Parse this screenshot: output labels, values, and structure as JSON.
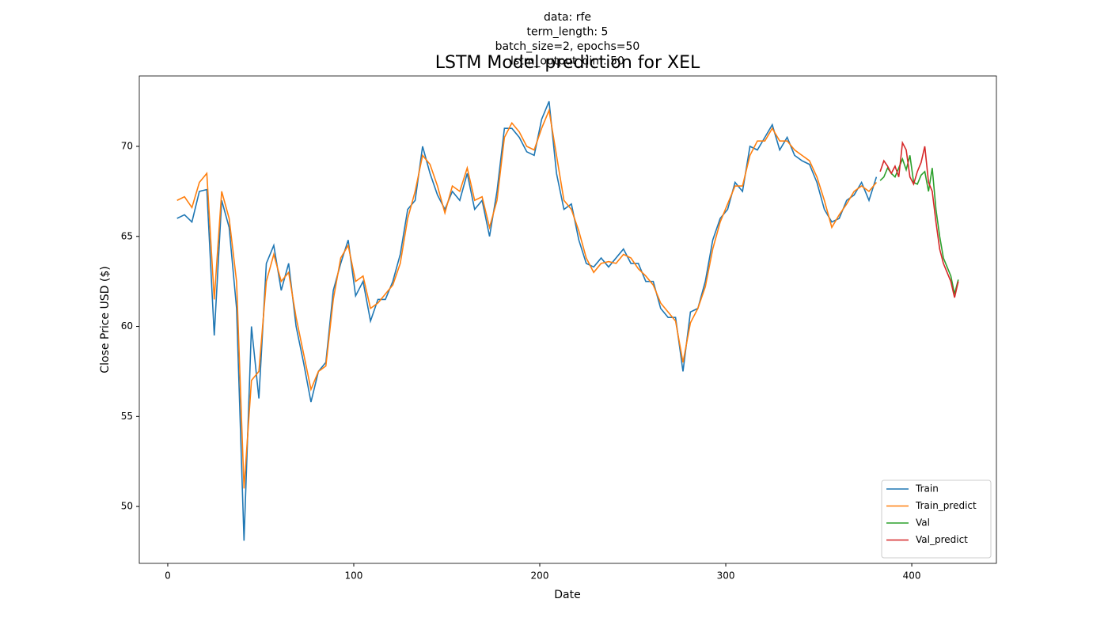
{
  "chart_data": {
    "type": "line",
    "subtitle_lines": [
      "data: rfe",
      "term_length: 5",
      "batch_size=2, epochs=50",
      "lstm_output_dim: 50"
    ],
    "title": "LSTM Model prediction for XEL",
    "x_label": "Date",
    "y_label": "Close Price USD ($)",
    "xlim": [
      -15.3,
      445.5
    ],
    "ylim": [
      46.84,
      73.91
    ],
    "xticks": [
      0,
      100,
      200,
      300,
      400
    ],
    "yticks": [
      50,
      55,
      60,
      65,
      70
    ],
    "legend": "lower right",
    "series": [
      {
        "name": "Train",
        "color": "#1f77b4",
        "x": [
          5,
          9,
          13,
          17,
          21,
          25,
          29,
          33,
          37,
          41,
          45,
          49,
          53,
          57,
          61,
          65,
          69,
          73,
          77,
          81,
          85,
          89,
          93,
          97,
          101,
          105,
          109,
          113,
          117,
          121,
          125,
          129,
          133,
          137,
          141,
          145,
          149,
          153,
          157,
          161,
          165,
          169,
          173,
          177,
          181,
          185,
          189,
          193,
          197,
          201,
          205,
          209,
          213,
          217,
          221,
          225,
          229,
          233,
          237,
          241,
          245,
          249,
          253,
          257,
          261,
          265,
          269,
          273,
          277,
          281,
          285,
          289,
          293,
          297,
          301,
          305,
          309,
          313,
          317,
          321,
          325,
          329,
          333,
          337,
          341,
          345,
          349,
          353,
          357,
          361,
          365,
          369,
          373,
          377,
          381
        ],
        "values": [
          66.0,
          66.2,
          65.8,
          67.5,
          67.6,
          59.5,
          67.0,
          65.5,
          61.0,
          48.1,
          60.0,
          56.0,
          63.5,
          64.5,
          62.0,
          63.5,
          60.0,
          58.0,
          55.8,
          57.5,
          58.0,
          62.0,
          63.5,
          64.8,
          61.7,
          62.5,
          60.3,
          61.5,
          61.5,
          62.5,
          64.0,
          66.5,
          67.0,
          70.0,
          68.5,
          67.3,
          66.5,
          67.5,
          67.0,
          68.5,
          66.5,
          67.0,
          65.0,
          67.5,
          71.0,
          71.0,
          70.5,
          69.7,
          69.5,
          71.5,
          72.5,
          68.5,
          66.5,
          66.8,
          64.8,
          63.5,
          63.3,
          63.8,
          63.3,
          63.8,
          64.3,
          63.5,
          63.5,
          62.5,
          62.5,
          61.0,
          60.5,
          60.5,
          57.5,
          60.8,
          61.0,
          62.5,
          64.8,
          66.0,
          66.5,
          68.0,
          67.5,
          70.0,
          69.8,
          70.5,
          71.2,
          69.8,
          70.5,
          69.5,
          69.2,
          69.0,
          68.0,
          66.5,
          65.8,
          66.0,
          67.0,
          67.3,
          68.0,
          67.0,
          68.3
        ]
      },
      {
        "name": "Train_predict",
        "color": "#ff7f0e",
        "x": [
          5,
          9,
          13,
          17,
          21,
          25,
          29,
          33,
          37,
          41,
          45,
          49,
          53,
          57,
          61,
          65,
          69,
          73,
          77,
          81,
          85,
          89,
          93,
          97,
          101,
          105,
          109,
          113,
          117,
          121,
          125,
          129,
          133,
          137,
          141,
          145,
          149,
          153,
          157,
          161,
          165,
          169,
          173,
          177,
          181,
          185,
          189,
          193,
          197,
          201,
          205,
          209,
          213,
          217,
          221,
          225,
          229,
          233,
          237,
          241,
          245,
          249,
          253,
          257,
          261,
          265,
          269,
          273,
          277,
          281,
          285,
          289,
          293,
          297,
          301,
          305,
          309,
          313,
          317,
          321,
          325,
          329,
          333,
          337,
          341,
          345,
          349,
          353,
          357,
          361,
          365,
          369,
          373,
          377,
          381
        ],
        "values": [
          67.0,
          67.2,
          66.6,
          68.0,
          68.5,
          61.5,
          67.5,
          66.0,
          62.5,
          51.0,
          57.0,
          57.5,
          62.5,
          64.0,
          62.5,
          63.0,
          60.5,
          58.5,
          56.5,
          57.5,
          57.8,
          61.5,
          63.8,
          64.5,
          62.5,
          62.8,
          61.0,
          61.3,
          61.8,
          62.3,
          63.5,
          66.0,
          67.5,
          69.5,
          69.0,
          67.8,
          66.3,
          67.8,
          67.5,
          68.8,
          67.0,
          67.2,
          65.5,
          67.0,
          70.5,
          71.3,
          70.8,
          70.0,
          69.8,
          71.0,
          72.0,
          69.5,
          67.0,
          66.5,
          65.3,
          63.8,
          63.0,
          63.5,
          63.6,
          63.5,
          64.0,
          63.8,
          63.2,
          62.8,
          62.3,
          61.3,
          60.8,
          60.3,
          58.0,
          60.2,
          61.0,
          62.2,
          64.3,
          65.8,
          66.8,
          67.8,
          67.8,
          69.5,
          70.3,
          70.3,
          71.0,
          70.3,
          70.3,
          69.8,
          69.5,
          69.2,
          68.3,
          67.0,
          65.5,
          66.2,
          66.8,
          67.5,
          67.8,
          67.5,
          68.0
        ]
      },
      {
        "name": "Val",
        "color": "#2ca02c",
        "x": [
          383,
          385,
          387,
          389,
          391,
          393,
          395,
          397,
          399,
          401,
          403,
          405,
          407,
          409,
          411,
          413,
          415,
          417,
          419,
          421,
          423,
          425
        ],
        "values": [
          68.1,
          68.3,
          68.8,
          68.5,
          68.3,
          68.8,
          69.3,
          68.7,
          69.5,
          68.0,
          67.9,
          68.4,
          68.6,
          67.5,
          68.8,
          66.5,
          65.0,
          63.8,
          63.3,
          62.8,
          61.8,
          62.6
        ]
      },
      {
        "name": "Val_predict",
        "color": "#d62728",
        "x": [
          383,
          385,
          387,
          389,
          391,
          393,
          395,
          397,
          399,
          401,
          403,
          405,
          407,
          409,
          411,
          413,
          415,
          417,
          419,
          421,
          423,
          425
        ],
        "values": [
          68.6,
          69.2,
          68.9,
          68.5,
          68.9,
          68.3,
          70.2,
          69.8,
          68.3,
          67.9,
          68.6,
          69.1,
          70.0,
          68.0,
          67.5,
          65.8,
          64.3,
          63.5,
          63.0,
          62.5,
          61.6,
          62.5
        ]
      }
    ]
  }
}
